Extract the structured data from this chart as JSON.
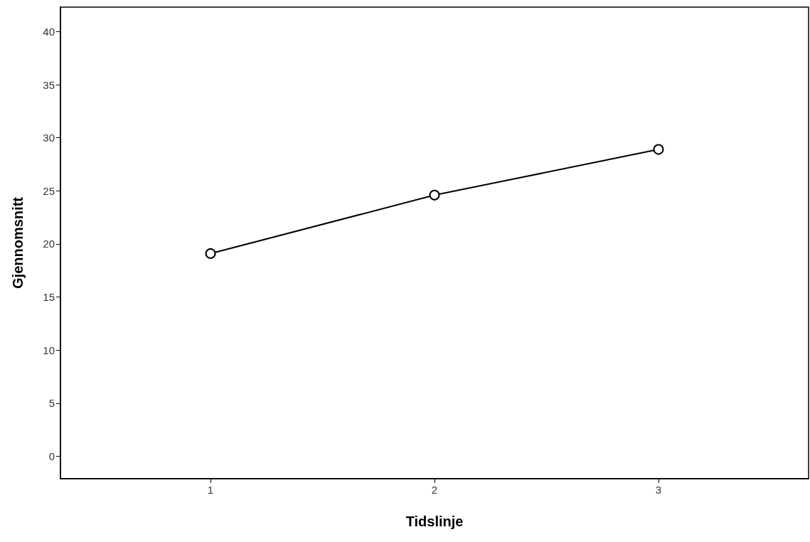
{
  "chart_data": {
    "type": "line",
    "xlabel": "Tidslinje",
    "ylabel": "Gjennomsnitt",
    "x": [
      1,
      2,
      3
    ],
    "values": [
      19.1,
      24.6,
      28.9
    ],
    "color": "#000000",
    "xlim": [
      0.33,
      3.67
    ],
    "xticks": [
      1,
      2,
      3
    ],
    "ylim": [
      -2.1,
      42.3
    ],
    "yticks": [
      0,
      5,
      10,
      15,
      20,
      25,
      30,
      35,
      40
    ],
    "grid": false,
    "marker": "circle",
    "line_style": "solid"
  }
}
